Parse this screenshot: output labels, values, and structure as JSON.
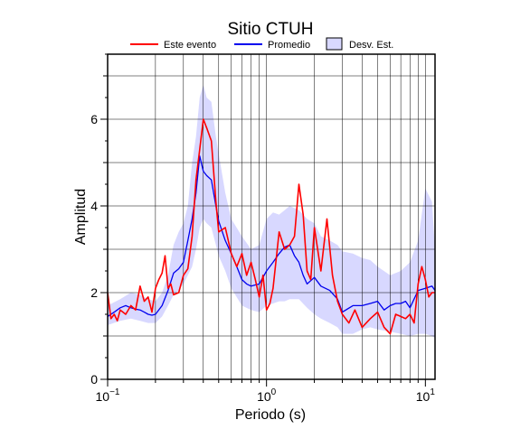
{
  "chart_data": {
    "type": "line",
    "title": "Sitio CTUH",
    "xlabel": "Periodo (s)",
    "ylabel": "Amplitud",
    "x_scale": "log",
    "xlim": [
      0.1,
      11.5
    ],
    "ylim": [
      0,
      7.5
    ],
    "x_ticks": [
      {
        "value": 0.1,
        "base": "10",
        "exp": "−1"
      },
      {
        "value": 1,
        "base": "10",
        "exp": "0"
      },
      {
        "value": 10,
        "base": "10",
        "exp": "1"
      }
    ],
    "y_ticks": [
      0,
      2,
      4,
      6
    ],
    "grid": true,
    "legend": {
      "placement": "top",
      "entries": [
        {
          "label": "Este evento",
          "kind": "line",
          "color": "#ff0000"
        },
        {
          "label": "Promedio",
          "kind": "line",
          "color": "#0000ee"
        },
        {
          "label": "Desv. Est.",
          "kind": "box",
          "color": "#d8d8ff"
        }
      ]
    },
    "series": [
      {
        "name": "Este evento",
        "color": "#ff0000",
        "x": [
          0.1,
          0.105,
          0.11,
          0.115,
          0.12,
          0.13,
          0.14,
          0.15,
          0.16,
          0.17,
          0.18,
          0.19,
          0.2,
          0.21,
          0.22,
          0.23,
          0.24,
          0.25,
          0.26,
          0.28,
          0.3,
          0.32,
          0.34,
          0.36,
          0.38,
          0.4,
          0.42,
          0.45,
          0.48,
          0.5,
          0.55,
          0.6,
          0.65,
          0.7,
          0.75,
          0.8,
          0.85,
          0.9,
          0.95,
          1.0,
          1.05,
          1.1,
          1.2,
          1.3,
          1.4,
          1.5,
          1.6,
          1.7,
          1.8,
          1.9,
          2.0,
          2.2,
          2.4,
          2.6,
          2.8,
          3.0,
          3.3,
          3.6,
          4.0,
          4.5,
          5.0,
          5.5,
          6.0,
          6.5,
          7.0,
          7.5,
          8.0,
          8.5,
          9.0,
          9.5,
          10.0,
          10.5,
          11.0,
          11.5
        ],
        "y": [
          2.0,
          1.4,
          1.5,
          1.35,
          1.6,
          1.5,
          1.7,
          1.6,
          2.15,
          1.8,
          1.9,
          1.55,
          2.1,
          2.3,
          2.45,
          2.85,
          2.1,
          2.2,
          1.95,
          2.0,
          2.4,
          2.55,
          3.3,
          4.6,
          5.3,
          6.0,
          5.8,
          5.5,
          4.1,
          3.4,
          3.5,
          2.9,
          2.6,
          2.9,
          2.4,
          2.7,
          2.3,
          1.9,
          2.4,
          1.6,
          1.75,
          2.1,
          3.4,
          3.0,
          3.1,
          3.3,
          4.5,
          3.8,
          2.5,
          2.3,
          3.5,
          2.5,
          3.7,
          2.4,
          1.8,
          1.5,
          1.3,
          1.6,
          1.2,
          1.4,
          1.55,
          1.2,
          1.05,
          1.5,
          1.45,
          1.4,
          1.5,
          1.3,
          2.2,
          2.6,
          2.3,
          1.9,
          2.0,
          2.0
        ]
      },
      {
        "name": "Promedio",
        "color": "#0000ee",
        "x": [
          0.1,
          0.11,
          0.12,
          0.13,
          0.14,
          0.15,
          0.16,
          0.17,
          0.18,
          0.19,
          0.2,
          0.22,
          0.24,
          0.26,
          0.28,
          0.3,
          0.32,
          0.34,
          0.36,
          0.38,
          0.4,
          0.42,
          0.45,
          0.48,
          0.5,
          0.55,
          0.6,
          0.65,
          0.7,
          0.75,
          0.8,
          0.9,
          1.0,
          1.1,
          1.2,
          1.3,
          1.4,
          1.5,
          1.6,
          1.7,
          1.8,
          2.0,
          2.2,
          2.5,
          2.8,
          3.0,
          3.5,
          4.0,
          4.5,
          5.0,
          5.5,
          6.0,
          6.5,
          7.0,
          7.5,
          8.0,
          9.0,
          10.0,
          11.0,
          11.5
        ],
        "y": [
          1.45,
          1.55,
          1.65,
          1.7,
          1.65,
          1.62,
          1.6,
          1.55,
          1.5,
          1.48,
          1.5,
          1.7,
          2.05,
          2.45,
          2.55,
          2.7,
          3.2,
          3.7,
          4.3,
          5.15,
          4.8,
          4.7,
          4.6,
          4.0,
          3.65,
          3.2,
          2.9,
          2.6,
          2.3,
          2.2,
          2.15,
          2.2,
          2.5,
          2.7,
          2.9,
          3.05,
          3.1,
          2.85,
          2.7,
          2.4,
          2.2,
          2.35,
          2.15,
          2.05,
          1.85,
          1.55,
          1.7,
          1.7,
          1.75,
          1.8,
          1.6,
          1.7,
          1.75,
          1.75,
          1.8,
          1.65,
          2.05,
          2.1,
          2.15,
          2.05
        ]
      }
    ],
    "band": {
      "name": "Desv. Est.",
      "color": "#d8d8ff",
      "x": [
        0.1,
        0.12,
        0.14,
        0.16,
        0.18,
        0.2,
        0.22,
        0.24,
        0.26,
        0.28,
        0.3,
        0.32,
        0.34,
        0.36,
        0.38,
        0.4,
        0.42,
        0.45,
        0.48,
        0.5,
        0.55,
        0.6,
        0.7,
        0.8,
        0.9,
        1.0,
        1.1,
        1.2,
        1.3,
        1.4,
        1.6,
        1.8,
        2.0,
        2.2,
        2.5,
        2.8,
        3.0,
        3.5,
        4.0,
        4.5,
        5.0,
        6.0,
        7.0,
        8.0,
        9.0,
        10.0,
        11.0,
        11.5
      ],
      "lower": [
        1.25,
        1.35,
        1.4,
        1.35,
        1.3,
        1.3,
        1.45,
        1.7,
        1.95,
        2.05,
        2.2,
        2.4,
        2.6,
        3.0,
        3.5,
        3.7,
        3.6,
        3.5,
        3.1,
        2.85,
        2.5,
        2.1,
        1.7,
        1.6,
        1.55,
        1.7,
        1.75,
        1.8,
        1.8,
        1.85,
        1.85,
        1.65,
        1.5,
        1.4,
        1.3,
        1.2,
        1.05,
        1.05,
        1.15,
        1.2,
        1.15,
        1.1,
        1.05,
        1.0,
        1.05,
        1.05,
        1.0,
        0.95
      ],
      "upper": [
        1.7,
        1.85,
        2.0,
        1.95,
        1.85,
        1.8,
        2.0,
        2.4,
        3.1,
        3.4,
        3.6,
        4.0,
        5.0,
        5.6,
        6.5,
        6.8,
        6.5,
        6.4,
        5.6,
        5.2,
        4.3,
        3.7,
        3.3,
        3.0,
        3.1,
        3.7,
        3.85,
        3.8,
        3.9,
        4.0,
        3.9,
        3.7,
        3.6,
        3.3,
        3.2,
        3.1,
        2.95,
        2.9,
        2.8,
        2.75,
        2.6,
        2.4,
        2.5,
        2.7,
        3.2,
        4.4,
        4.1,
        3.0
      ]
    }
  }
}
